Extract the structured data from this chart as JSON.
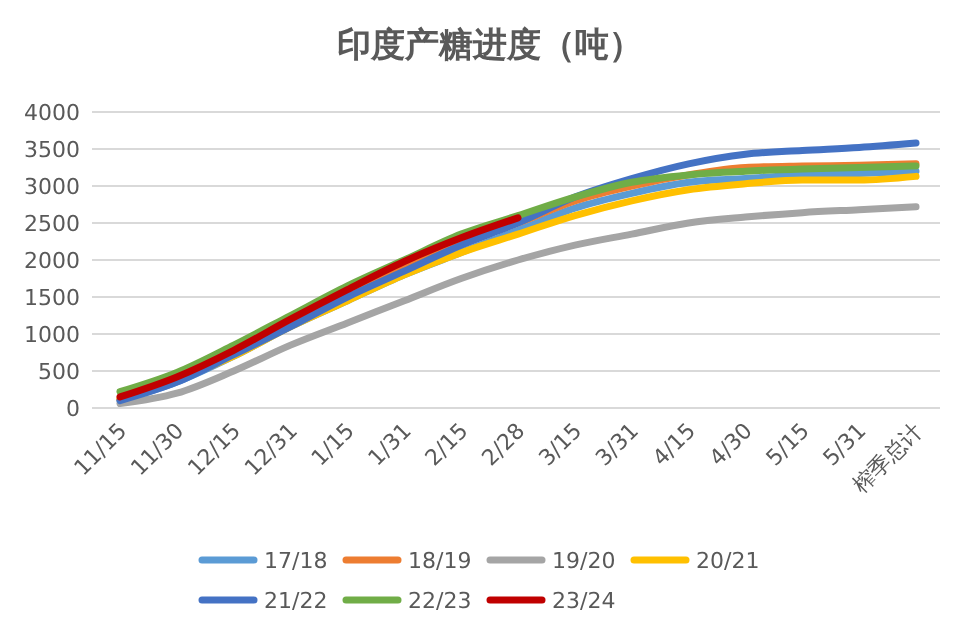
{
  "chart_data": {
    "type": "line",
    "title": "印度产糖进度（吨）",
    "categories": [
      "11/15",
      "11/30",
      "12/15",
      "12/31",
      "1/15",
      "1/31",
      "2/15",
      "2/28",
      "3/15",
      "3/31",
      "4/15",
      "4/30",
      "5/15",
      "5/31",
      "榨季总计"
    ],
    "series": [
      {
        "name": "17/18",
        "color": "#5b9bd5",
        "values": [
          100,
          350,
          700,
          1100,
          1450,
          1800,
          2100,
          2400,
          2700,
          2900,
          3050,
          3100,
          3150,
          3170,
          3200
        ]
      },
      {
        "name": "18/19",
        "color": "#ed7d31",
        "values": [
          120,
          400,
          750,
          1150,
          1550,
          1900,
          2250,
          2500,
          2800,
          3000,
          3150,
          3250,
          3270,
          3280,
          3300
        ]
      },
      {
        "name": "19/20",
        "color": "#a5a5a5",
        "values": [
          60,
          200,
          500,
          850,
          1150,
          1450,
          1750,
          2000,
          2200,
          2350,
          2500,
          2580,
          2640,
          2680,
          2720
        ]
      },
      {
        "name": "20/21",
        "color": "#ffc000",
        "values": [
          120,
          380,
          700,
          1100,
          1450,
          1800,
          2100,
          2350,
          2600,
          2800,
          2950,
          3030,
          3080,
          3080,
          3130
        ]
      },
      {
        "name": "21/22",
        "color": "#4472c4",
        "values": [
          100,
          350,
          720,
          1100,
          1500,
          1850,
          2200,
          2500,
          2850,
          3100,
          3300,
          3430,
          3480,
          3520,
          3580
        ]
      },
      {
        "name": "22/23",
        "color": "#70ad47",
        "values": [
          220,
          480,
          850,
          1250,
          1650,
          2000,
          2350,
          2600,
          2850,
          3050,
          3150,
          3200,
          3230,
          3250,
          3270
        ]
      },
      {
        "name": "23/24",
        "color": "#c00000",
        "values": [
          150,
          420,
          780,
          1200,
          1600,
          1980,
          2300,
          2570,
          null,
          null,
          null,
          null,
          null,
          null,
          null
        ]
      }
    ],
    "ylim": [
      0,
      4000
    ],
    "yticks": [
      0,
      500,
      1000,
      1500,
      2000,
      2500,
      3000,
      3500,
      4000
    ],
    "grid": "y",
    "legend": "bottom",
    "marker": "none",
    "line_style": "solid"
  }
}
